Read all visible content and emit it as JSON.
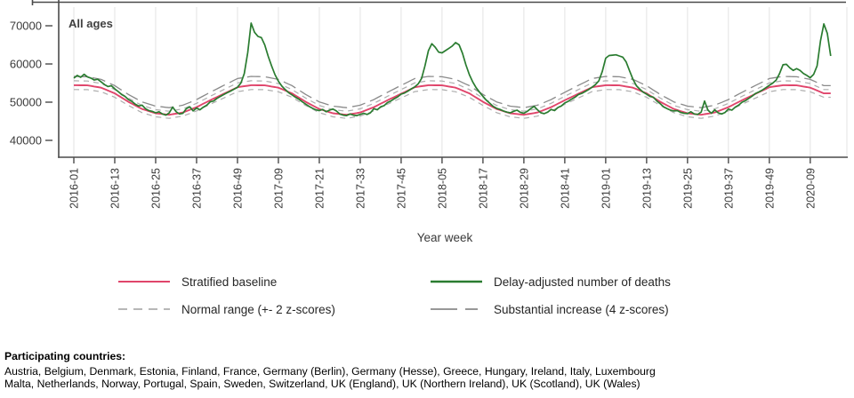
{
  "chart_data": {
    "type": "line",
    "panel_label": "All ages",
    "xlabel": "Year week",
    "x_start_week": "2016-01",
    "x_tick_labels": [
      "2016-01",
      "2016-13",
      "2016-25",
      "2016-37",
      "2016-49",
      "2017-09",
      "2017-21",
      "2017-33",
      "2017-45",
      "2018-05",
      "2018-17",
      "2018-29",
      "2018-41",
      "2019-01",
      "2019-13",
      "2019-25",
      "2019-37",
      "2019-49",
      "2020-09"
    ],
    "x_tick_week_index": [
      0,
      12,
      24,
      36,
      48,
      60,
      72,
      84,
      96,
      108,
      120,
      132,
      144,
      156,
      168,
      180,
      192,
      204,
      216
    ],
    "y_ticks": [
      40000,
      50000,
      60000,
      70000
    ],
    "ylim": [
      35600,
      74900
    ],
    "grid": "vertical-only",
    "series_notes": {
      "deaths_weekly": "Delay-adjusted number of deaths, weekly from 2016-01 to 2020-15 (estimated from plot)",
      "baseline_every_4_weeks": "Stratified baseline sampled every 4 weeks from 2016-01 (estimated from plot)",
      "z2_offset_every_4_weeks": "2 z-score offset; normal range = baseline +/- offset; substantial increase = baseline + 2*offset"
    },
    "deaths_weekly": [
      56300,
      57000,
      56500,
      57300,
      56600,
      56300,
      55800,
      56000,
      55300,
      54600,
      54100,
      54300,
      53500,
      52800,
      52000,
      51500,
      50700,
      50200,
      49500,
      49000,
      49200,
      48300,
      47800,
      47600,
      47200,
      47500,
      46900,
      46600,
      47200,
      48700,
      47500,
      46900,
      47100,
      48300,
      48800,
      47700,
      48500,
      48000,
      48700,
      49200,
      50100,
      50300,
      51000,
      51500,
      52000,
      52500,
      52900,
      53400,
      53900,
      55000,
      57500,
      63000,
      70700,
      68300,
      67200,
      66900,
      65000,
      62000,
      59500,
      57200,
      55500,
      54200,
      53300,
      52500,
      51900,
      51300,
      50800,
      50100,
      49500,
      48900,
      48400,
      48000,
      47800,
      48100,
      47500,
      47900,
      48200,
      47700,
      46900,
      46600,
      46500,
      46900,
      46600,
      46500,
      46800,
      47100,
      46800,
      47200,
      48300,
      48000,
      48800,
      49100,
      49900,
      50300,
      50900,
      51400,
      52100,
      52400,
      52900,
      53500,
      54000,
      54800,
      56200,
      59500,
      63500,
      65300,
      64400,
      63100,
      62900,
      63500,
      64100,
      64700,
      65600,
      65000,
      62800,
      59800,
      57200,
      55300,
      53800,
      52600,
      51500,
      50500,
      49700,
      48900,
      48400,
      48100,
      47700,
      47400,
      47200,
      47600,
      47900,
      47300,
      47100,
      47600,
      48300,
      48900,
      48000,
      47200,
      47000,
      47400,
      48100,
      47800,
      48600,
      49000,
      49800,
      50200,
      50800,
      51300,
      52000,
      52300,
      52800,
      53300,
      53900,
      54600,
      55600,
      58000,
      61500,
      62200,
      62300,
      62400,
      62100,
      61800,
      60500,
      58200,
      56000,
      54300,
      53400,
      52600,
      52100,
      51500,
      51300,
      50300,
      49600,
      48800,
      48300,
      47900,
      47700,
      47800,
      47300,
      47100,
      47000,
      47500,
      46900,
      46800,
      47400,
      50300,
      47900,
      47100,
      48000,
      47200,
      46900,
      47300,
      48200,
      47900,
      48700,
      49200,
      50000,
      50400,
      51000,
      51600,
      52300,
      52700,
      53200,
      53800,
      54400,
      55000,
      55800,
      57500,
      59800,
      59900,
      59000,
      58300,
      58800,
      58300,
      57500,
      57000,
      56400,
      57300,
      59500,
      66000,
      70500,
      68000,
      62100
    ],
    "baseline_every_4_weeks": [
      54450,
      54400,
      53800,
      52300,
      50100,
      48200,
      47100,
      46700,
      47300,
      48700,
      50500,
      52200,
      53900,
      54450,
      54400,
      53800,
      52300,
      50100,
      48200,
      47100,
      46700,
      47300,
      48700,
      50500,
      52200,
      53900,
      54450,
      54400,
      53800,
      52300,
      50100,
      48200,
      47100,
      46700,
      47300,
      48700,
      50500,
      52200,
      53900,
      54450,
      54400,
      53800,
      52300,
      50100,
      48200,
      47100,
      46700,
      47300,
      48700,
      50500,
      52200,
      53900,
      54450,
      54400,
      53800,
      52300
    ],
    "z2_offset_every_4_weeks": [
      1150,
      1130,
      1080,
      1010,
      960,
      940,
      930,
      930,
      950,
      990,
      1040,
      1100,
      1140,
      1150,
      1130,
      1080,
      1010,
      960,
      940,
      930,
      930,
      950,
      990,
      1040,
      1100,
      1140,
      1150,
      1130,
      1080,
      1010,
      960,
      940,
      930,
      930,
      950,
      990,
      1040,
      1100,
      1140,
      1150,
      1130,
      1080,
      1010,
      960,
      940,
      930,
      930,
      950,
      990,
      1040,
      1100,
      1140,
      1150,
      1130,
      1080,
      1010
    ],
    "colors": {
      "deaths": "#2a7c30",
      "baseline": "#e0456b",
      "normal_range": "#adadad",
      "substantial": "#8a8a8a",
      "grid": "#e3e3e3",
      "axis": "#4a4a4a",
      "text": "#3a3a3a"
    }
  },
  "legend": {
    "items": [
      {
        "label": "Stratified baseline",
        "color": "#e0456b",
        "style": "solid"
      },
      {
        "label": "Normal range (+- 2 z-scores)",
        "color": "#adadad",
        "style": "dashed"
      },
      {
        "label": "Delay-adjusted number of deaths",
        "color": "#2a7c30",
        "style": "solid"
      },
      {
        "label": "Substantial increase (4 z-scores)",
        "color": "#8a8a8a",
        "style": "long-dash"
      }
    ]
  },
  "footer": {
    "heading": "Participating countries:",
    "line1": "Austria, Belgium, Denmark, Estonia, Finland, France, Germany (Berlin), Germany (Hesse), Greece, Hungary, Ireland, Italy, Luxembourg",
    "line2": "Malta, Netherlands, Norway, Portugal, Spain, Sweden, Switzerland, UK (England), UK (Northern Ireland), UK (Scotland), UK (Wales)"
  }
}
